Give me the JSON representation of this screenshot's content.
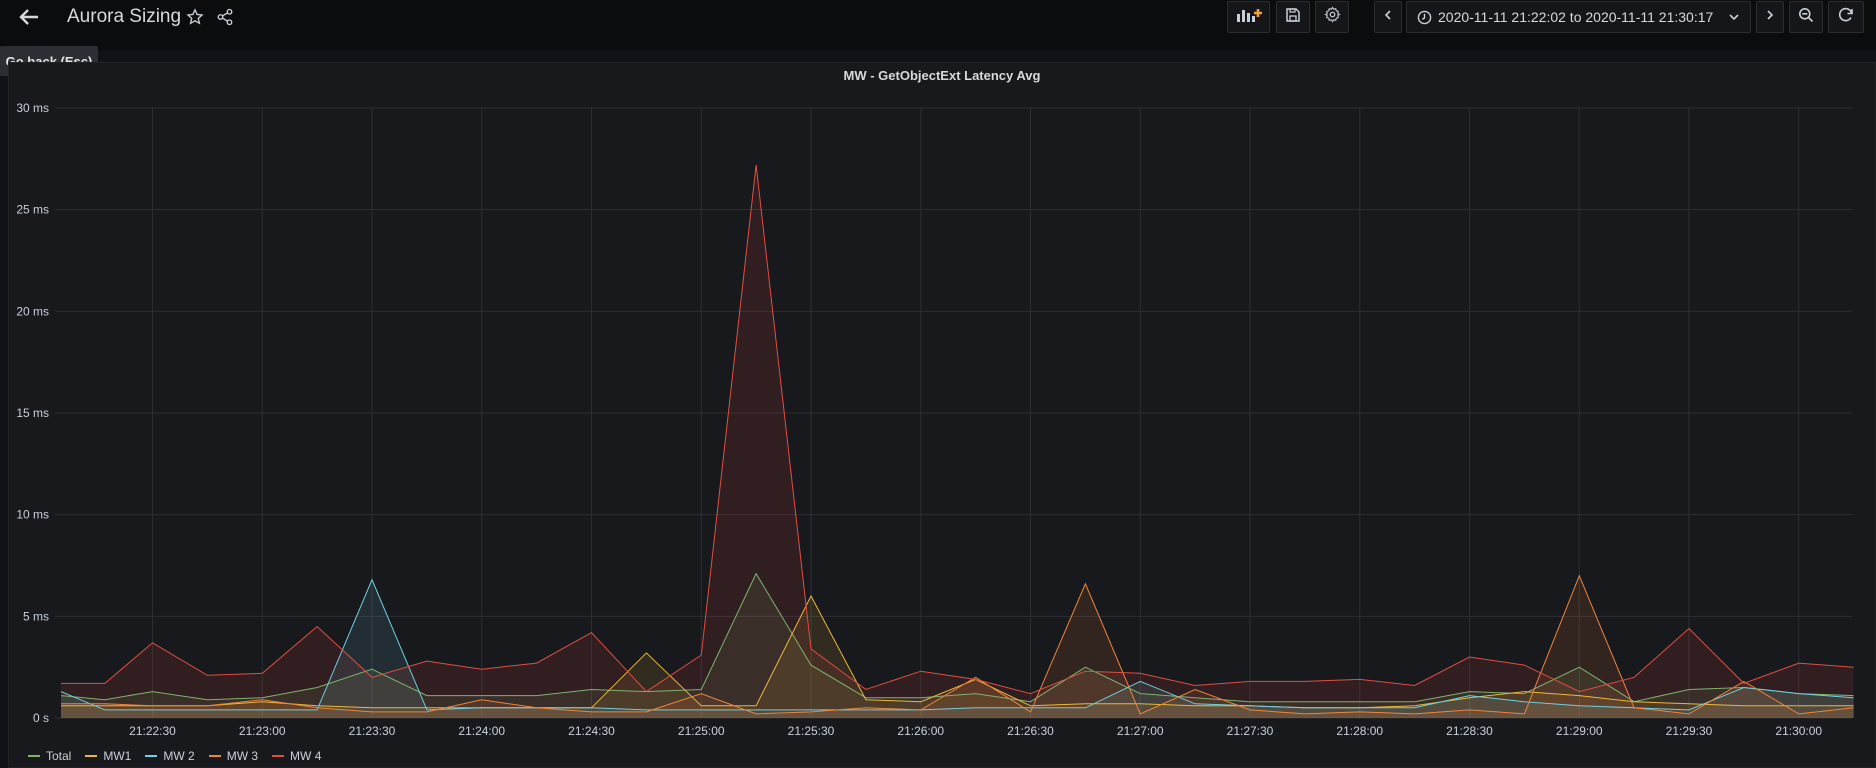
{
  "dashboard": {
    "title": "Aurora Sizing",
    "tooltip": "Go back (Esc)",
    "time_range": "2020-11-11 21:22:02 to 2020-11-11 21:30:17"
  },
  "icons": {
    "back": "arrow-left-icon",
    "star": "star-icon",
    "share": "share-icon",
    "add_panel": "add-panel-icon",
    "save": "save-icon",
    "settings": "gear-icon",
    "prev": "chevron-left-icon",
    "clock": "clock-icon",
    "dropdown": "chevron-down-icon",
    "next": "chevron-right-icon",
    "zoom_out": "zoom-out-icon",
    "refresh": "refresh-icon"
  },
  "colors": {
    "background": "#111217",
    "panel": "#18191d",
    "Total": "#7eb26d",
    "MW1": "#eab839",
    "MW 2": "#6ed0e0",
    "MW 3": "#ef843c",
    "MW 4": "#e24d42"
  },
  "chart_data": {
    "type": "area",
    "title": "MW - GetObjectExt Latency Avg",
    "xlabel": "",
    "ylabel": "",
    "ylim": [
      0,
      30
    ],
    "y_ticks": [
      "0 s",
      "5 ms",
      "10 ms",
      "15 ms",
      "20 ms",
      "25 ms",
      "30 ms"
    ],
    "x_ticks": [
      "21:22:30",
      "21:23:00",
      "21:23:30",
      "21:24:00",
      "21:24:30",
      "21:25:00",
      "21:25:30",
      "21:26:00",
      "21:26:30",
      "21:27:00",
      "21:27:30",
      "21:28:00",
      "21:28:30",
      "21:29:00",
      "21:29:30",
      "21:30:00"
    ],
    "legend_position": "bottom-left",
    "grid": true,
    "x": [
      "21:22:05",
      "21:22:17",
      "21:22:30",
      "21:22:45",
      "21:23:00",
      "21:23:15",
      "21:23:30",
      "21:23:45",
      "21:24:00",
      "21:24:15",
      "21:24:30",
      "21:24:45",
      "21:25:00",
      "21:25:15",
      "21:25:30",
      "21:25:45",
      "21:26:00",
      "21:26:15",
      "21:26:30",
      "21:26:45",
      "21:27:00",
      "21:27:15",
      "21:27:30",
      "21:27:45",
      "21:28:00",
      "21:28:15",
      "21:28:30",
      "21:28:45",
      "21:29:00",
      "21:29:15",
      "21:29:30",
      "21:29:45",
      "21:30:00",
      "21:30:15"
    ],
    "series": [
      {
        "name": "Total",
        "values": [
          1.1,
          0.9,
          1.3,
          0.9,
          1.0,
          1.5,
          2.4,
          1.1,
          1.1,
          1.1,
          1.4,
          1.3,
          1.4,
          7.1,
          2.6,
          1.0,
          1.0,
          1.2,
          0.8,
          2.5,
          1.2,
          1.0,
          0.8,
          0.8,
          0.8,
          0.8,
          1.3,
          1.2,
          2.5,
          0.8,
          1.4,
          1.5,
          1.2,
          1.1
        ]
      },
      {
        "name": "MW1",
        "values": [
          0.6,
          0.6,
          0.6,
          0.6,
          0.8,
          0.6,
          0.5,
          0.5,
          0.5,
          0.5,
          0.5,
          3.2,
          0.6,
          0.6,
          6.0,
          0.9,
          0.8,
          1.9,
          0.6,
          0.7,
          0.7,
          0.6,
          0.6,
          0.5,
          0.5,
          0.6,
          1.0,
          1.3,
          1.1,
          0.8,
          0.7,
          0.6,
          0.6,
          0.6
        ]
      },
      {
        "name": "MW 2",
        "values": [
          1.3,
          0.4,
          0.4,
          0.4,
          0.4,
          0.4,
          6.8,
          0.4,
          0.5,
          0.5,
          0.5,
          0.4,
          0.4,
          0.4,
          0.4,
          0.4,
          0.4,
          0.5,
          0.5,
          0.5,
          1.8,
          0.7,
          0.6,
          0.5,
          0.5,
          0.5,
          1.1,
          0.8,
          0.6,
          0.5,
          0.4,
          1.5,
          1.2,
          1.0
        ]
      },
      {
        "name": "MW 3",
        "values": [
          0.7,
          0.7,
          0.6,
          0.6,
          0.9,
          0.5,
          0.3,
          0.3,
          0.9,
          0.5,
          0.3,
          0.3,
          1.2,
          0.2,
          0.3,
          0.5,
          0.4,
          2.0,
          0.3,
          6.6,
          0.2,
          1.4,
          0.4,
          0.2,
          0.3,
          0.2,
          0.4,
          0.2,
          7.0,
          0.5,
          0.2,
          1.8,
          0.2,
          0.5
        ]
      },
      {
        "name": "MW 4",
        "values": [
          1.7,
          1.7,
          3.7,
          2.1,
          2.2,
          4.5,
          2.0,
          2.8,
          2.4,
          2.7,
          4.2,
          1.3,
          3.1,
          27.2,
          3.4,
          1.4,
          2.3,
          1.9,
          1.2,
          2.3,
          2.2,
          1.6,
          1.8,
          1.8,
          1.9,
          1.6,
          3.0,
          2.6,
          1.3,
          2.0,
          4.4,
          1.7,
          2.7,
          2.5
        ]
      }
    ]
  }
}
